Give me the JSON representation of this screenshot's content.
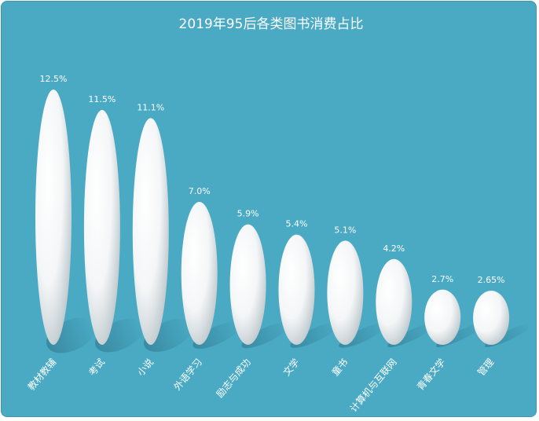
{
  "chart_data": {
    "type": "bar",
    "title": "2019年95后各类图书消费占比",
    "categories": [
      "教材教辅",
      "考试",
      "小说",
      "外语学习",
      "励志与成功",
      "文学",
      "童书",
      "计算机与互联网",
      "青春文学",
      "管理"
    ],
    "values": [
      12.5,
      11.5,
      11.1,
      7.0,
      5.9,
      5.4,
      5.1,
      4.2,
      2.7,
      2.65
    ],
    "value_labels": [
      "12.5%",
      "11.5%",
      "11.1%",
      "7.0%",
      "5.9%",
      "5.4%",
      "5.1%",
      "4.2%",
      "2.7%",
      "2.65%"
    ],
    "xlabel": "",
    "ylabel": "",
    "ylim": [
      0,
      12.5
    ],
    "grid": false,
    "legend": "none",
    "colors": {
      "background": "#4aaac4",
      "bar": "#ffffff",
      "bar_shade": "#c9d2d6",
      "text": "#ffffff"
    }
  }
}
